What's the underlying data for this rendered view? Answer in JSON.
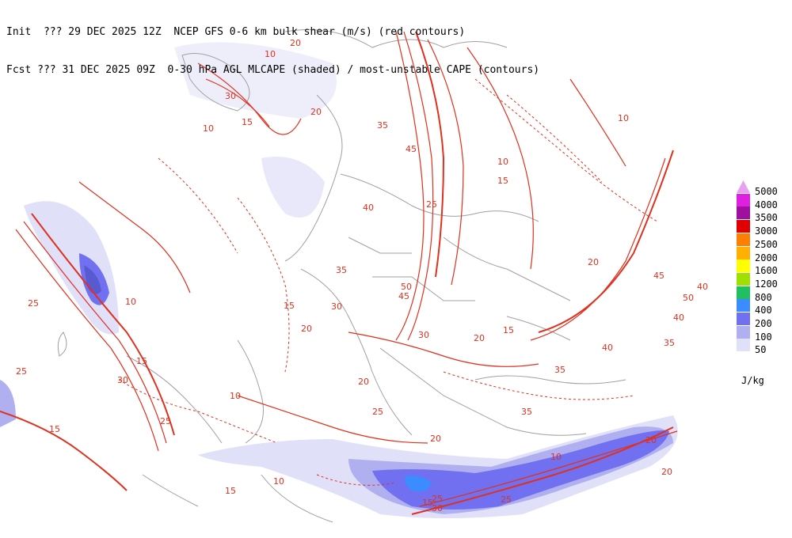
{
  "header": {
    "line1": "Init  ??? 29 DEC 2025 12Z  NCEP GFS 0-6 km bulk shear (m/s) (red contours)",
    "line2": "Fcst ??? 31 DEC 2025 09Z  0-30 hPa AGL MLCAPE (shaded) / most-unstable CAPE (contours)"
  },
  "legend": {
    "levels": [
      {
        "label": "5000",
        "color": "#e8a0f0"
      },
      {
        "label": "4000",
        "color": "#e020e0"
      },
      {
        "label": "3500",
        "color": "#a010a0"
      },
      {
        "label": "3000",
        "color": "#e00000"
      },
      {
        "label": "2500",
        "color": "#ff7f00"
      },
      {
        "label": "2000",
        "color": "#ffb000"
      },
      {
        "label": "1600",
        "color": "#ffff00"
      },
      {
        "label": "1200",
        "color": "#a0e000"
      },
      {
        "label": "800",
        "color": "#20c060"
      },
      {
        "label": "400",
        "color": "#3a8cff"
      },
      {
        "label": "200",
        "color": "#7070f0"
      },
      {
        "label": "100",
        "color": "#b0b0f0"
      },
      {
        "label": "50",
        "color": "#e0e0f8"
      }
    ],
    "units": "J/kg"
  },
  "contour_labels": [
    "10",
    "20",
    "30",
    "10",
    "15",
    "20",
    "35",
    "45",
    "40",
    "25",
    "50",
    "45",
    "30",
    "35",
    "10",
    "15",
    "20",
    "10",
    "45",
    "40",
    "50",
    "40",
    "30",
    "15",
    "35",
    "25",
    "30",
    "10",
    "20",
    "25",
    "15",
    "20",
    "25",
    "10",
    "15",
    "20",
    "10",
    "25",
    "35",
    "20",
    "40",
    "15",
    "35",
    "15",
    "20",
    "25",
    "30",
    "20",
    "25",
    "10",
    "15"
  ],
  "colors": {
    "shear": "#e0301e",
    "land": "#a0a0a0"
  }
}
